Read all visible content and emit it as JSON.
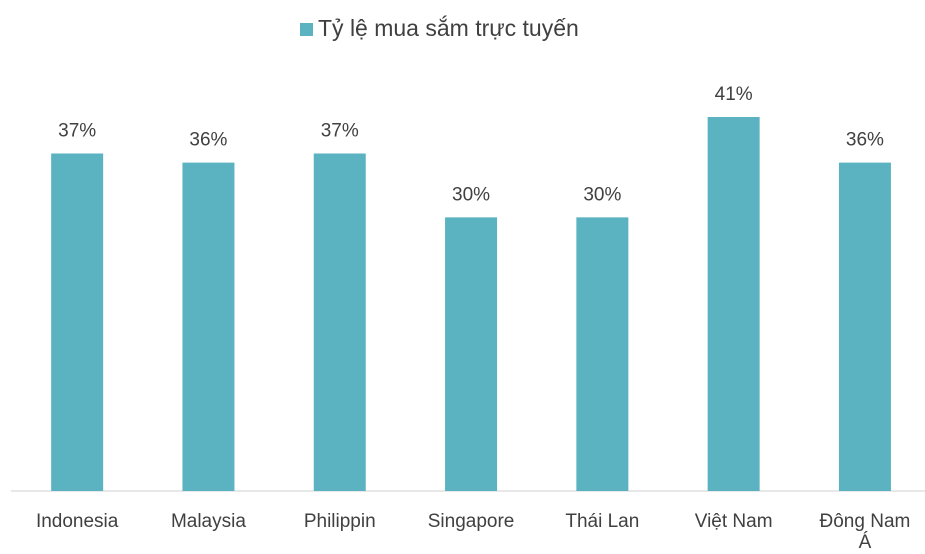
{
  "chart_data": {
    "type": "bar",
    "legend": "Tỷ lệ mua sắm trực tuyến",
    "color": "#5bb3c1",
    "categories": [
      "Indonesia",
      "Malaysia",
      "Philippin",
      "Singapore",
      "Thái Lan",
      "Việt Nam",
      "Đông Nam Á"
    ],
    "values": [
      37,
      36,
      37,
      30,
      30,
      41,
      36
    ],
    "value_labels": [
      "37%",
      "36%",
      "37%",
      "30%",
      "30%",
      "41%",
      "36%"
    ]
  }
}
